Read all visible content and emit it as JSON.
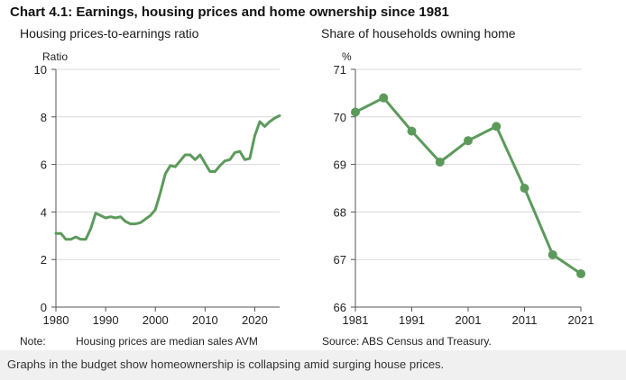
{
  "title": "Chart 4.1: Earnings, housing prices and home ownership since 1981",
  "note_label": "Note:",
  "note_text": "Housing prices are median sales AVM",
  "source_text": "Source: ABS Census and Treasury.",
  "caption": "Graphs in the budget show homeownership is collapsing amid surging house prices.",
  "colors": {
    "line": "#5c9a5c",
    "axis": "#555555",
    "grid": "#d9d9d9"
  },
  "chart_data": [
    {
      "type": "line",
      "title": "Housing prices-to-earnings ratio",
      "ylabel": "Ratio",
      "xlim": [
        1980,
        2025
      ],
      "ylim": [
        0,
        10
      ],
      "xticks": [
        1980,
        1990,
        2000,
        2010,
        2020
      ],
      "yticks": [
        0,
        2,
        4,
        6,
        8,
        10
      ],
      "grid": true,
      "series": [
        {
          "x": [
            1980,
            1981,
            1982,
            1983,
            1984,
            1985,
            1986,
            1987,
            1988,
            1989,
            1990,
            1991,
            1992,
            1993,
            1994,
            1995,
            1996,
            1997,
            1998,
            1999,
            2000,
            2001,
            2002,
            2003,
            2004,
            2005,
            2006,
            2007,
            2008,
            2009,
            2010,
            2011,
            2012,
            2013,
            2014,
            2015,
            2016,
            2017,
            2018,
            2019,
            2020,
            2021,
            2022,
            2023,
            2024,
            2025
          ],
          "y": [
            3.1,
            3.1,
            2.85,
            2.85,
            2.95,
            2.85,
            2.85,
            3.3,
            3.95,
            3.85,
            3.75,
            3.8,
            3.75,
            3.8,
            3.6,
            3.5,
            3.5,
            3.55,
            3.7,
            3.85,
            4.1,
            4.8,
            5.6,
            5.95,
            5.9,
            6.15,
            6.4,
            6.4,
            6.2,
            6.4,
            6.05,
            5.7,
            5.7,
            5.95,
            6.15,
            6.2,
            6.5,
            6.55,
            6.2,
            6.25,
            7.2,
            7.8,
            7.6,
            7.8,
            7.95,
            8.05
          ]
        }
      ]
    },
    {
      "type": "line",
      "title": "Share of households owning home",
      "ylabel": "%",
      "xlim": [
        1981,
        2021
      ],
      "ylim": [
        66,
        71
      ],
      "xticks": [
        1981,
        1991,
        2001,
        2011,
        2021
      ],
      "yticks": [
        66,
        67,
        68,
        69,
        70,
        71
      ],
      "grid": true,
      "markers": true,
      "series": [
        {
          "x": [
            1981,
            1986,
            1991,
            1996,
            2001,
            2006,
            2011,
            2016,
            2021
          ],
          "y": [
            70.1,
            70.4,
            69.7,
            69.05,
            69.5,
            69.8,
            68.5,
            67.1,
            66.7
          ]
        }
      ]
    }
  ]
}
